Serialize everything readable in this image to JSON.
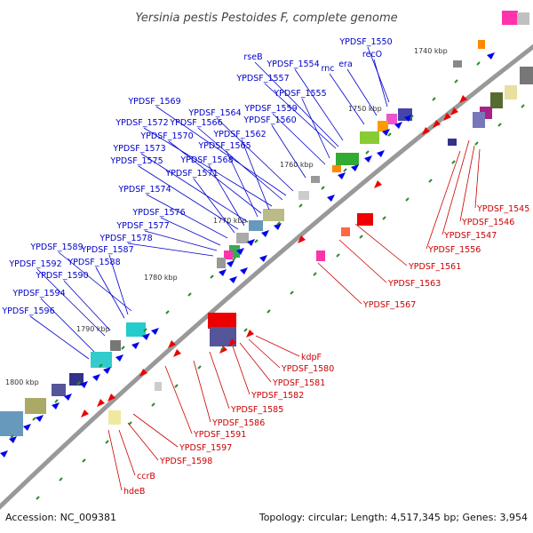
{
  "title": "Yersinia pestis Pestoides F, complete genome",
  "footer": {
    "accession": "Accession: NC_009381",
    "topology": "Topology: circular; Length: 4,517,345 bp; Genes: 3,954"
  },
  "colors": {
    "backbone": "#888888",
    "forward_label": "#0000cc",
    "reverse_label": "#cc0000",
    "forward_feature": "#0000ee",
    "reverse_feature": "#ee0000",
    "tick": "#2e8b2e"
  },
  "kbp_labels": [
    "1740 kbp",
    "1750 kbp",
    "1760 kbp",
    "1770 kbp",
    "1780 kbp",
    "1790 kbp",
    "1800 kbp"
  ],
  "forward_genes": [
    "YPDSF_1550",
    "recO",
    "era",
    "rnc",
    "rseB",
    "YPDSF_1554",
    "YPDSF_1557",
    "YPDSF_1555",
    "YPDSF_1559",
    "YPDSF_1560",
    "YPDSF_1564",
    "YPDSF_1569",
    "YPDSF_1566",
    "YPDSF_1572",
    "YPDSF_1562",
    "YPDSF_1570",
    "YPDSF_1565",
    "YPDSF_1573",
    "YPDSF_1568",
    "YPDSF_1575",
    "YPDSF_1571",
    "YPDSF_1574",
    "YPDSF_1576",
    "YPDSF_1577",
    "YPDSF_1578",
    "YPDSF_1589",
    "YPDSF_1587",
    "YPDSF_1588",
    "YPDSF_1592",
    "YPDSF_1590",
    "YPDSF_1594",
    "YPDSF_1596"
  ],
  "reverse_genes": [
    "YPDSF_1545",
    "YPDSF_1546",
    "YPDSF_1547",
    "YPDSF_1556",
    "YPDSF_1561",
    "YPDSF_1563",
    "YPDSF_1567",
    "kdpF",
    "YPDSF_1580",
    "YPDSF_1581",
    "YPDSF_1582",
    "YPDSF_1585",
    "YPDSF_1586",
    "YPDSF_1591",
    "YPDSF_1597",
    "YPDSF_1598",
    "ccrB",
    "hdeB"
  ]
}
